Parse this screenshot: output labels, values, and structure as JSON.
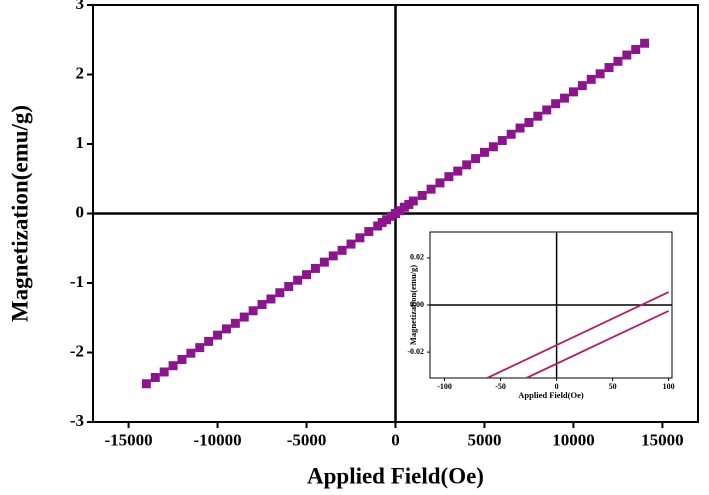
{
  "chart_data": [
    {
      "type": "scatter",
      "x_label": "Applied Field(Oe)",
      "y_label": "Magnetization(emu/g)",
      "x": [
        -14000,
        -13500,
        -13000,
        -12500,
        -12000,
        -11500,
        -11000,
        -10500,
        -10000,
        -9500,
        -9000,
        -8500,
        -8000,
        -7500,
        -7000,
        -6500,
        -6000,
        -5500,
        -5000,
        -4500,
        -4000,
        -3500,
        -3000,
        -2500,
        -2000,
        -1500,
        -1000,
        -750,
        -500,
        -250,
        0,
        250,
        500,
        750,
        1000,
        1500,
        2000,
        2500,
        3000,
        3500,
        4000,
        4500,
        5000,
        5500,
        6000,
        6500,
        7000,
        7500,
        8000,
        8500,
        9000,
        9500,
        10000,
        10500,
        11000,
        11500,
        12000,
        12500,
        13000,
        13500,
        14000
      ],
      "series": [
        {
          "color": "#8b168b",
          "values": [
            -2.45,
            -2.36,
            -2.28,
            -2.19,
            -2.1,
            -2.01,
            -1.93,
            -1.84,
            -1.75,
            -1.66,
            -1.58,
            -1.49,
            -1.4,
            -1.31,
            -1.23,
            -1.14,
            -1.05,
            -0.96,
            -0.88,
            -0.79,
            -0.7,
            -0.61,
            -0.53,
            -0.44,
            -0.35,
            -0.26,
            -0.18,
            -0.13,
            -0.09,
            -0.04,
            0,
            0.04,
            0.09,
            0.13,
            0.18,
            0.26,
            0.35,
            0.44,
            0.53,
            0.61,
            0.7,
            0.79,
            0.88,
            0.96,
            1.05,
            1.14,
            1.23,
            1.31,
            1.4,
            1.49,
            1.58,
            1.66,
            1.75,
            1.84,
            1.93,
            2.01,
            2.1,
            2.19,
            2.28,
            2.36,
            2.45
          ]
        }
      ],
      "xlim": [
        -17000,
        17000
      ],
      "ylim": [
        -3,
        3
      ],
      "xticks": [
        -15000,
        -10000,
        -5000,
        0,
        5000,
        10000,
        15000
      ],
      "yticks": [
        -3,
        -2,
        -1,
        0,
        1,
        2,
        3
      ]
    },
    {
      "type": "line",
      "x_label": "Applied Field(Oe)",
      "y_label": "Magnetization(emu/g)",
      "series": [
        {
          "color": "#b0206e",
          "x": [
            -62,
            100
          ],
          "values": [
            -0.031,
            0.0055
          ]
        },
        {
          "color": "#b0206e",
          "x": [
            -27,
            100
          ],
          "values": [
            -0.031,
            -0.0025
          ]
        }
      ],
      "xlim": [
        -113,
        103
      ],
      "ylim": [
        -0.031,
        0.031
      ],
      "xticks": [
        -100,
        -50,
        0,
        50,
        100
      ],
      "yticks": [
        -0.02,
        {
          "value": 0,
          "label": "0.00"
        },
        0.02
      ]
    }
  ]
}
